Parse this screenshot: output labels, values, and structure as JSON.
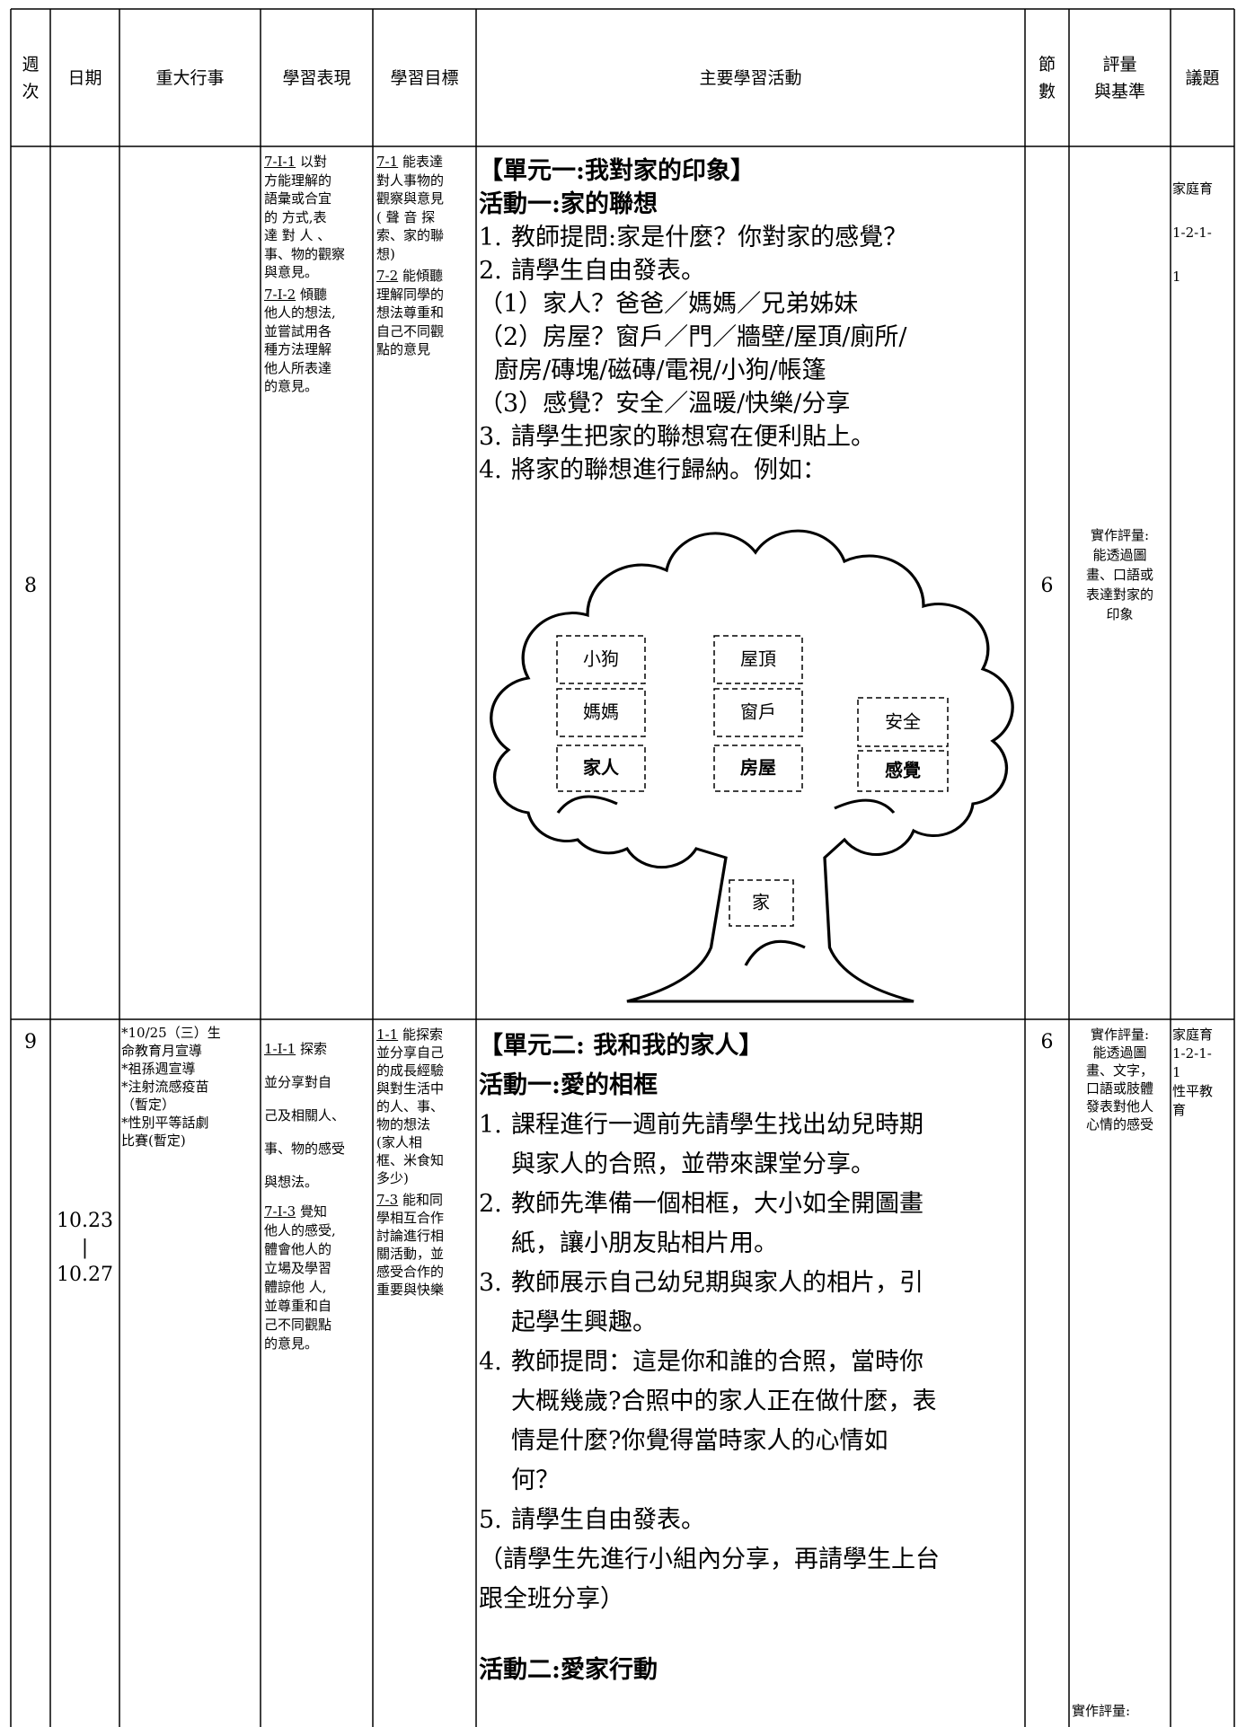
{
  "header": [
    "週次",
    "日期",
    "重大行事",
    "學習表現",
    "學習目標",
    "主要學習活動",
    "節數",
    [
      "評量",
      "與基準"
    ],
    "議題"
  ],
  "rows": [
    {
      "week": "8",
      "performance": [
        {
          "code": "7-I-1",
          "lines": [
            "以對",
            "方能理解的",
            "語彙或合宜",
            "的 方式,表",
            "達 對 人 、",
            "事、物的觀察",
            "與意見。"
          ]
        },
        {
          "code": "7-I-2",
          "lines": [
            "傾聽",
            "他人的想法,",
            "並嘗試用各",
            "種方法理解",
            "他人所表達",
            "的意見。"
          ]
        }
      ],
      "goals": [
        {
          "code": "7-1",
          "lines": [
            "能表達",
            "對人事物的",
            "觀察與意見",
            "( 聲 音 探",
            "索、家的聯",
            "想)"
          ]
        },
        {
          "code": "7-2",
          "lines": [
            "能傾聽",
            "理解同學的",
            "想法尊重和",
            "自己不同觀",
            "點的意見"
          ]
        }
      ],
      "activity": {
        "title": "【單元一:我對家的印象】",
        "subtitle": "活動一:家的聯想",
        "blocks": [
          {
            "num": "1.",
            "lines": [
              "教師提問:家是什麼？你對家的感覺？"
            ]
          },
          {
            "num": "2.",
            "lines": [
              "請學生自由發表。"
            ]
          },
          {
            "lines": [
              "（1）家人？爸爸／媽媽／兄弟姊妹",
              "（2）房屋？窗戶／門／牆壁/屋頂/廁所/",
              "  廚房/磚塊/磁磚/電視/小狗/帳篷",
              "（3）感覺？安全／溫暖/快樂/分享"
            ]
          },
          {
            "num": "3.",
            "lines": [
              "請學生把家的聯想寫在便利貼上。"
            ]
          },
          {
            "num": "4.",
            "lines": [
              "將家的聯想進行歸納。例如："
            ]
          }
        ]
      },
      "tree_labels": {
        "dog": "小狗",
        "mom": "媽媽",
        "family": "家人",
        "roof": "屋頂",
        "window": "窗戶",
        "house": "房屋",
        "safe": "安全",
        "feeling": "感覺",
        "home": "家"
      },
      "periods": "6",
      "assessment": [
        "實作評量:",
        "能透過圖",
        "畫、口語或",
        "表達對家的",
        "印象"
      ],
      "issue": [
        "家庭育",
        "1-2-1-",
        "1"
      ]
    },
    {
      "week": "9",
      "date": [
        "10.23",
        "|",
        "10.27"
      ],
      "events": [
        "*10/25（三）生",
        "命教育月宣導",
        "*祖孫週宣導",
        "*注射流感疫苗",
        "（暫定）",
        "*性別平等話劇",
        "比賽(暫定)"
      ],
      "performance": [
        {
          "code": "1-I-1",
          "lines": [
            "探索",
            "並分享對自",
            "己及相關人、",
            "事、物的感受",
            "與想法。"
          ]
        },
        {
          "code": "7-I-3",
          "lines": [
            "覺知",
            "他人的感受,",
            "體會他人的",
            "立場及學習",
            "體諒他 人,",
            "並尊重和自",
            "己不同觀點",
            "的意見。"
          ]
        }
      ],
      "goals": [
        {
          "code": "1-1",
          "lines": [
            "能探索",
            "並分享自己",
            "的成長經驗",
            "與對生活中",
            "的人、事、",
            "物的想法",
            "(家人相",
            "框、米食知",
            "多少)"
          ]
        },
        {
          "code": "7-3",
          "lines": [
            "能和同",
            "學相互合作",
            "討論進行相",
            "關活動，並",
            "感受合作的",
            "重要與快樂"
          ]
        }
      ],
      "activity": {
        "title": "【單元二: 我和我的家人】",
        "subtitle": "活動一:愛的相框",
        "blocks": [
          {
            "num": "1.",
            "lines": [
              "課程進行一週前先請學生找出幼兒時期",
              "與家人的合照，並帶來課堂分享。"
            ]
          },
          {
            "num": "2.",
            "lines": [
              "教師先準備一個相框，大小如全開圖畫",
              "紙，讓小朋友貼相片用。"
            ]
          },
          {
            "num": "3.",
            "lines": [
              "教師展示自己幼兒期與家人的相片，引",
              "起學生興趣。"
            ]
          },
          {
            "num": "4.",
            "lines": [
              "教師提問：這是你和誰的合照，當時你",
              "大概幾歲?合照中的家人正在做什麼，表",
              "情是什麼?你覺得當時家人的心情如",
              "何？"
            ]
          },
          {
            "num": "5.",
            "lines": [
              "請學生自由發表。"
            ]
          },
          {
            "lines": [
              "（請學生先進行小組內分享，再請學生上台",
              "跟全班分享）"
            ]
          }
        ],
        "subtitle2": "活動二:愛家行動"
      },
      "periods": "6",
      "assessment": [
        "實作評量:",
        "能透過圖",
        "畫、文字，",
        "口語或肢體",
        "發表對他人",
        "心情的感受"
      ],
      "assessment_extra": "實作評量:",
      "issue": [
        "家庭育",
        "1-2-1-",
        "1",
        "性平教",
        "育"
      ]
    }
  ]
}
